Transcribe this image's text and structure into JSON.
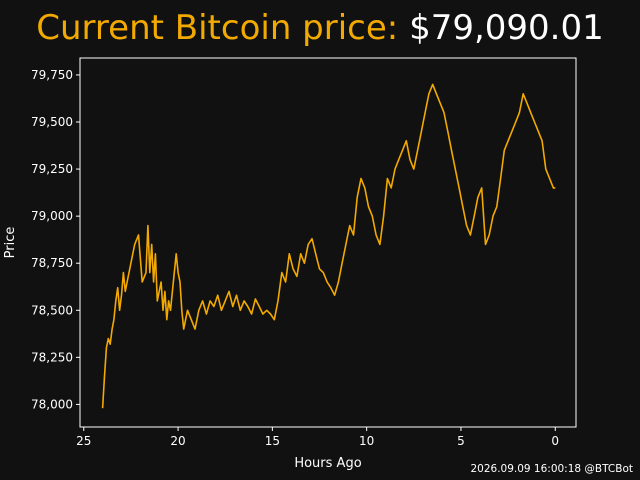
{
  "header": {
    "title_label": "Current Bitcoin price:",
    "title_price": "$79,090.01"
  },
  "footer": {
    "timestamp": "2026.09.09 16:00:18 @BTCBot"
  },
  "colors": {
    "background": "#111111",
    "line": "#f2a900",
    "text": "#ffffff",
    "title_label": "#f2a900"
  },
  "chart_data": {
    "type": "line",
    "xlabel": "Hours Ago",
    "ylabel": "Price",
    "x_reversed": true,
    "xlim": [
      25.2,
      -1.1
    ],
    "ylim": [
      77880,
      79840
    ],
    "xticks": [
      25,
      20,
      15,
      10,
      5,
      0
    ],
    "yticks": [
      78000,
      78250,
      78500,
      78750,
      79000,
      79250,
      79500,
      79750
    ],
    "ytick_labels": [
      "78,000",
      "78,250",
      "78,500",
      "78,750",
      "79,000",
      "79,250",
      "79,500",
      "79,750"
    ],
    "grid": false,
    "series": [
      {
        "x": [
          24.0,
          23.9,
          23.8,
          23.7,
          23.6,
          23.5,
          23.4,
          23.3,
          23.2,
          23.1,
          23.0,
          22.9,
          22.8,
          22.7,
          22.5,
          22.3,
          22.1,
          21.9,
          21.7,
          21.6,
          21.5,
          21.4,
          21.3,
          21.2,
          21.1,
          21.0,
          20.9,
          20.8,
          20.7,
          20.6,
          20.5,
          20.4,
          20.3,
          20.2,
          20.1,
          20.0,
          19.9,
          19.8,
          19.7,
          19.6,
          19.5,
          19.3,
          19.1,
          18.9,
          18.7,
          18.5,
          18.3,
          18.1,
          17.9,
          17.7,
          17.5,
          17.3,
          17.1,
          16.9,
          16.7,
          16.5,
          16.3,
          16.1,
          15.9,
          15.7,
          15.5,
          15.3,
          15.1,
          14.9,
          14.7,
          14.5,
          14.3,
          14.1,
          13.9,
          13.7,
          13.5,
          13.3,
          13.1,
          12.9,
          12.7,
          12.5,
          12.3,
          12.1,
          11.9,
          11.7,
          11.5,
          11.3,
          11.1,
          10.9,
          10.7,
          10.5,
          10.3,
          10.1,
          9.9,
          9.7,
          9.5,
          9.3,
          9.1,
          8.9,
          8.7,
          8.5,
          8.3,
          8.1,
          7.9,
          7.7,
          7.5,
          7.3,
          7.1,
          6.9,
          6.7,
          6.5,
          6.3,
          6.1,
          5.9,
          5.7,
          5.5,
          5.3,
          5.1,
          4.9,
          4.7,
          4.5,
          4.3,
          4.1,
          3.9,
          3.7,
          3.5,
          3.3,
          3.1,
          2.9,
          2.7,
          2.5,
          2.3,
          2.1,
          1.9,
          1.7,
          1.5,
          1.3,
          1.1,
          0.9,
          0.7,
          0.5,
          0.3,
          0.1,
          0.0
        ],
        "y": [
          77980,
          78150,
          78300,
          78350,
          78320,
          78400,
          78450,
          78550,
          78620,
          78500,
          78580,
          78700,
          78600,
          78650,
          78750,
          78850,
          78900,
          78650,
          78700,
          78950,
          78700,
          78850,
          78650,
          78800,
          78550,
          78600,
          78650,
          78500,
          78600,
          78450,
          78550,
          78500,
          78600,
          78700,
          78800,
          78700,
          78650,
          78500,
          78400,
          78450,
          78500,
          78450,
          78400,
          78500,
          78550,
          78480,
          78550,
          78520,
          78580,
          78500,
          78550,
          78600,
          78520,
          78580,
          78500,
          78550,
          78520,
          78480,
          78560,
          78520,
          78480,
          78500,
          78480,
          78450,
          78550,
          78700,
          78650,
          78800,
          78720,
          78680,
          78800,
          78750,
          78850,
          78880,
          78800,
          78720,
          78700,
          78650,
          78620,
          78580,
          78650,
          78750,
          78850,
          78950,
          78900,
          79100,
          79200,
          79150,
          79050,
          79000,
          78900,
          78850,
          79000,
          79200,
          79150,
          79250,
          79300,
          79350,
          79400,
          79300,
          79250,
          79350,
          79450,
          79550,
          79650,
          79700,
          79650,
          79600,
          79550,
          79450,
          79350,
          79250,
          79150,
          79050,
          78950,
          78900,
          79000,
          79100,
          79150,
          78850,
          78900,
          79000,
          79050,
          79200,
          79350,
          79400,
          79450,
          79500,
          79550,
          79650,
          79600,
          79550,
          79500,
          79450,
          79400,
          79250,
          79200,
          79150,
          79150
        ]
      }
    ]
  }
}
